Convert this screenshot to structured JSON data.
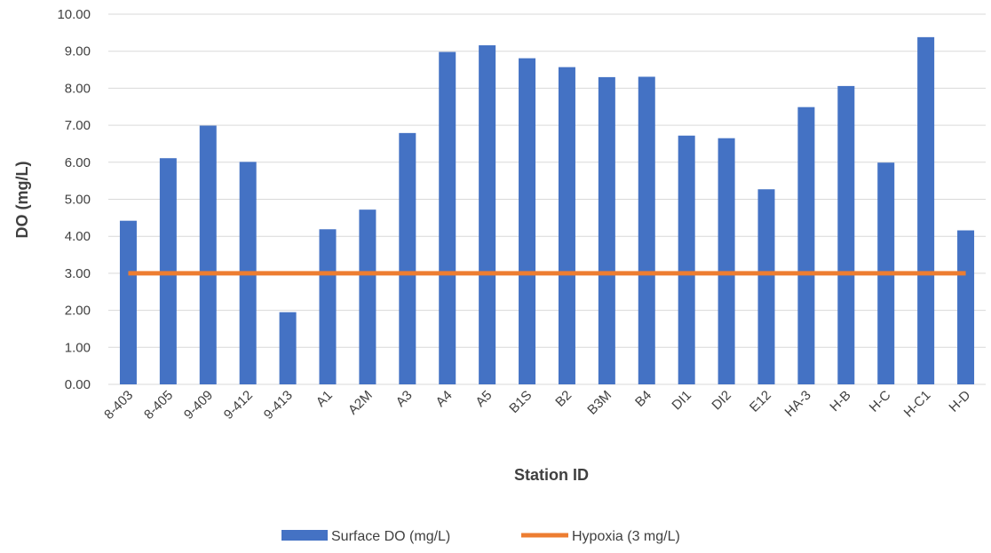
{
  "chart_data": {
    "type": "bar",
    "title": "",
    "xlabel": "Station ID",
    "ylabel": "DO (mg/L)",
    "ylim": [
      0,
      10
    ],
    "ytick_step": 1,
    "ytick_decimals": 2,
    "grid": true,
    "legend_position": "bottom",
    "categories": [
      "8-403",
      "8-405",
      "9-409",
      "9-412",
      "9-413",
      "A1",
      "A2M",
      "A3",
      "A4",
      "A5",
      "B1S",
      "B2",
      "B3M",
      "B4",
      "DI1",
      "DI2",
      "E12",
      "HA-3",
      "H-B",
      "H-C",
      "H-C1",
      "H-D"
    ],
    "series": [
      {
        "name": "Surface DO (mg/L)",
        "type": "bar",
        "color": "#4472C4",
        "values": [
          4.42,
          6.11,
          6.99,
          6.01,
          1.95,
          4.19,
          4.72,
          6.79,
          8.98,
          9.16,
          8.81,
          8.57,
          8.3,
          8.31,
          6.72,
          6.65,
          5.27,
          7.49,
          8.06,
          5.99,
          9.38,
          4.16
        ]
      },
      {
        "name": "Hypoxia (3 mg/L)",
        "type": "line",
        "color": "#ED7D31",
        "values": [
          3,
          3,
          3,
          3,
          3,
          3,
          3,
          3,
          3,
          3,
          3,
          3,
          3,
          3,
          3,
          3,
          3,
          3,
          3,
          3,
          3,
          3
        ]
      }
    ]
  }
}
